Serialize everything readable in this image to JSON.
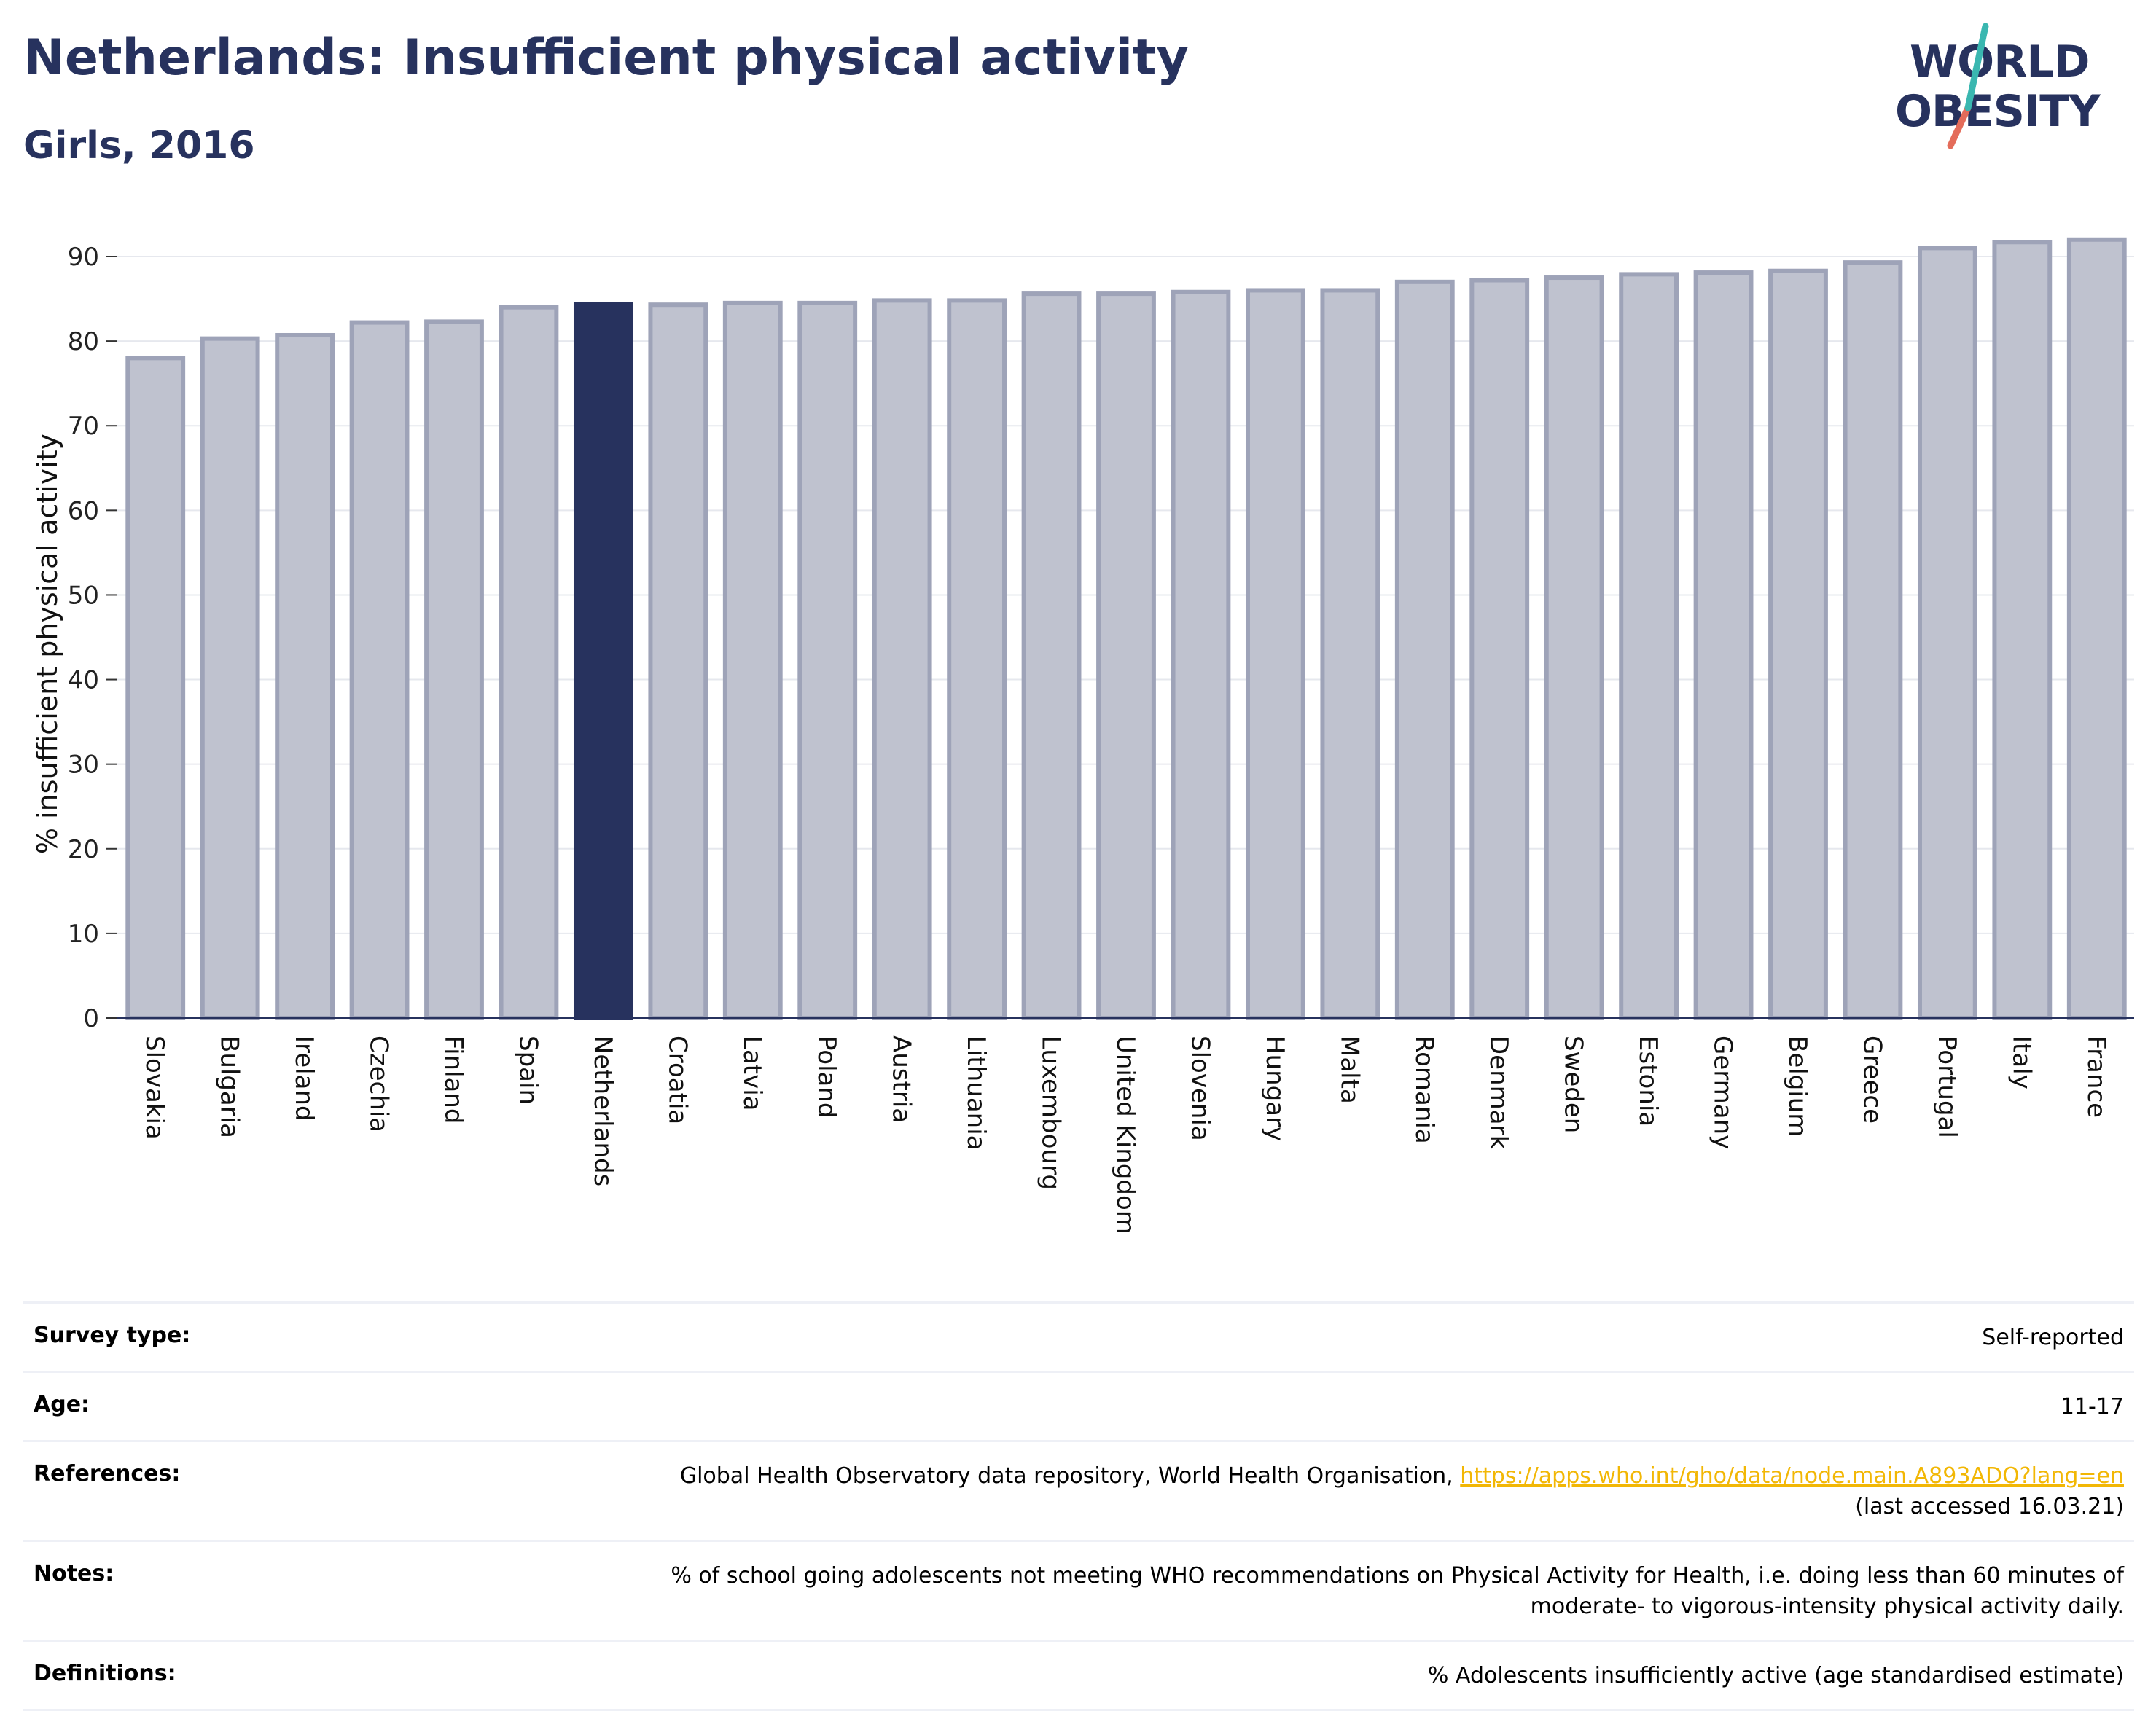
{
  "header": {
    "title": "Netherlands: Insufficient physical activity",
    "subtitle": "Girls, 2016"
  },
  "logo": {
    "line1": "WORLD",
    "line2": "OBESITY"
  },
  "colors": {
    "highlight_bar": "#27325e",
    "bar": "#bfc2cf",
    "bar_stroke": "#9ea3b8",
    "text_dark": "#27325e",
    "link": "#f2b705",
    "logo_slash_teal": "#3ab7b0",
    "logo_slash_coral": "#e46c5a"
  },
  "chart_data": {
    "type": "bar",
    "ylabel": "% insufficient physical activity",
    "xlabel": "",
    "ylim": [
      0,
      90
    ],
    "yticks": [
      "0",
      "10",
      "20",
      "30",
      "40",
      "50",
      "60",
      "70",
      "80",
      "90"
    ],
    "grid": true,
    "highlight": "Netherlands",
    "categories": [
      "Slovakia",
      "Bulgaria",
      "Ireland",
      "Czechia",
      "Finland",
      "Spain",
      "Netherlands",
      "Croatia",
      "Latvia",
      "Poland",
      "Austria",
      "Lithuania",
      "Luxembourg",
      "United Kingdom",
      "Slovenia",
      "Hungary",
      "Malta",
      "Romania",
      "Denmark",
      "Sweden",
      "Estonia",
      "Germany",
      "Belgium",
      "Greece",
      "Portugal",
      "Italy",
      "France"
    ],
    "values": [
      78.0,
      80.3,
      80.7,
      82.2,
      82.3,
      84.0,
      84.4,
      84.3,
      84.5,
      84.5,
      84.8,
      84.8,
      85.6,
      85.6,
      85.8,
      86.0,
      86.0,
      87.0,
      87.2,
      87.5,
      87.9,
      88.1,
      88.3,
      89.3,
      91.0,
      91.7,
      92.0
    ]
  },
  "info": {
    "survey_type": {
      "label": "Survey type:",
      "value": "Self-reported"
    },
    "age": {
      "label": "Age:",
      "value": "11-17"
    },
    "references": {
      "label": "References:",
      "text": "Global Health Observatory data repository, World Health Organisation,",
      "link": "https://apps.who.int/gho/data/node.main.A893ADO?lang=en",
      "accessed": "(last accessed 16.03.21)"
    },
    "notes": {
      "label": "Notes:",
      "line1": "% of school going adolescents not meeting WHO recommendations on Physical Activity for Health, i.e. doing less than 60 minutes of",
      "line2": "moderate- to vigorous-intensity physical activity daily."
    },
    "definitions": {
      "label": "Definitions:",
      "value": "% Adolescents insufficiently active (age standardised estimate)"
    }
  }
}
